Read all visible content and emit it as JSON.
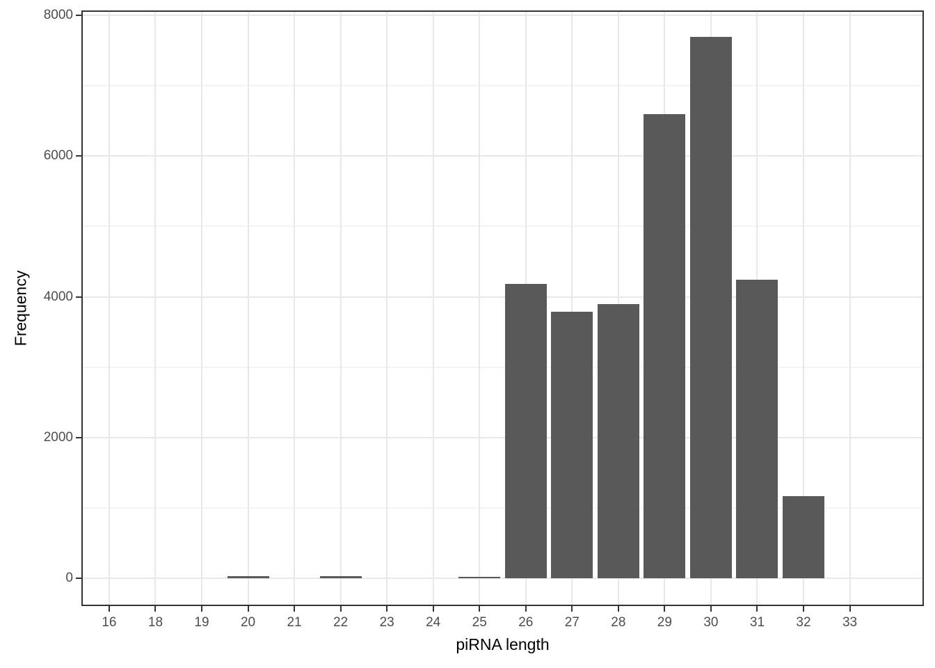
{
  "chart_data": {
    "type": "bar",
    "title": "",
    "xlabel": "piRNA length",
    "ylabel": "Frequency",
    "categories": [
      "16",
      "18",
      "19",
      "20",
      "21",
      "22",
      "23",
      "24",
      "25",
      "26",
      "27",
      "28",
      "29",
      "30",
      "31",
      "32",
      "33"
    ],
    "values": [
      0,
      0,
      0,
      25,
      0,
      25,
      0,
      0,
      15,
      4180,
      3790,
      3895,
      6600,
      7690,
      4240,
      1170,
      0
    ],
    "y_major_ticks": [
      0,
      2000,
      4000,
      6000,
      8000
    ],
    "y_minor_ticks": [
      1000,
      3000,
      5000,
      7000
    ],
    "ylim": [
      0,
      8000
    ],
    "grid": "on",
    "legend": "none",
    "colors": {
      "bar_fill": "#595959",
      "panel_background": "#ffffff",
      "panel_border": "#333333",
      "grid_major": "#e8e8e8",
      "grid_minor": "#f4f4f4",
      "tick_mark": "#333333",
      "tick_label": "#4d4d4d",
      "axis_title": "#000000"
    }
  }
}
